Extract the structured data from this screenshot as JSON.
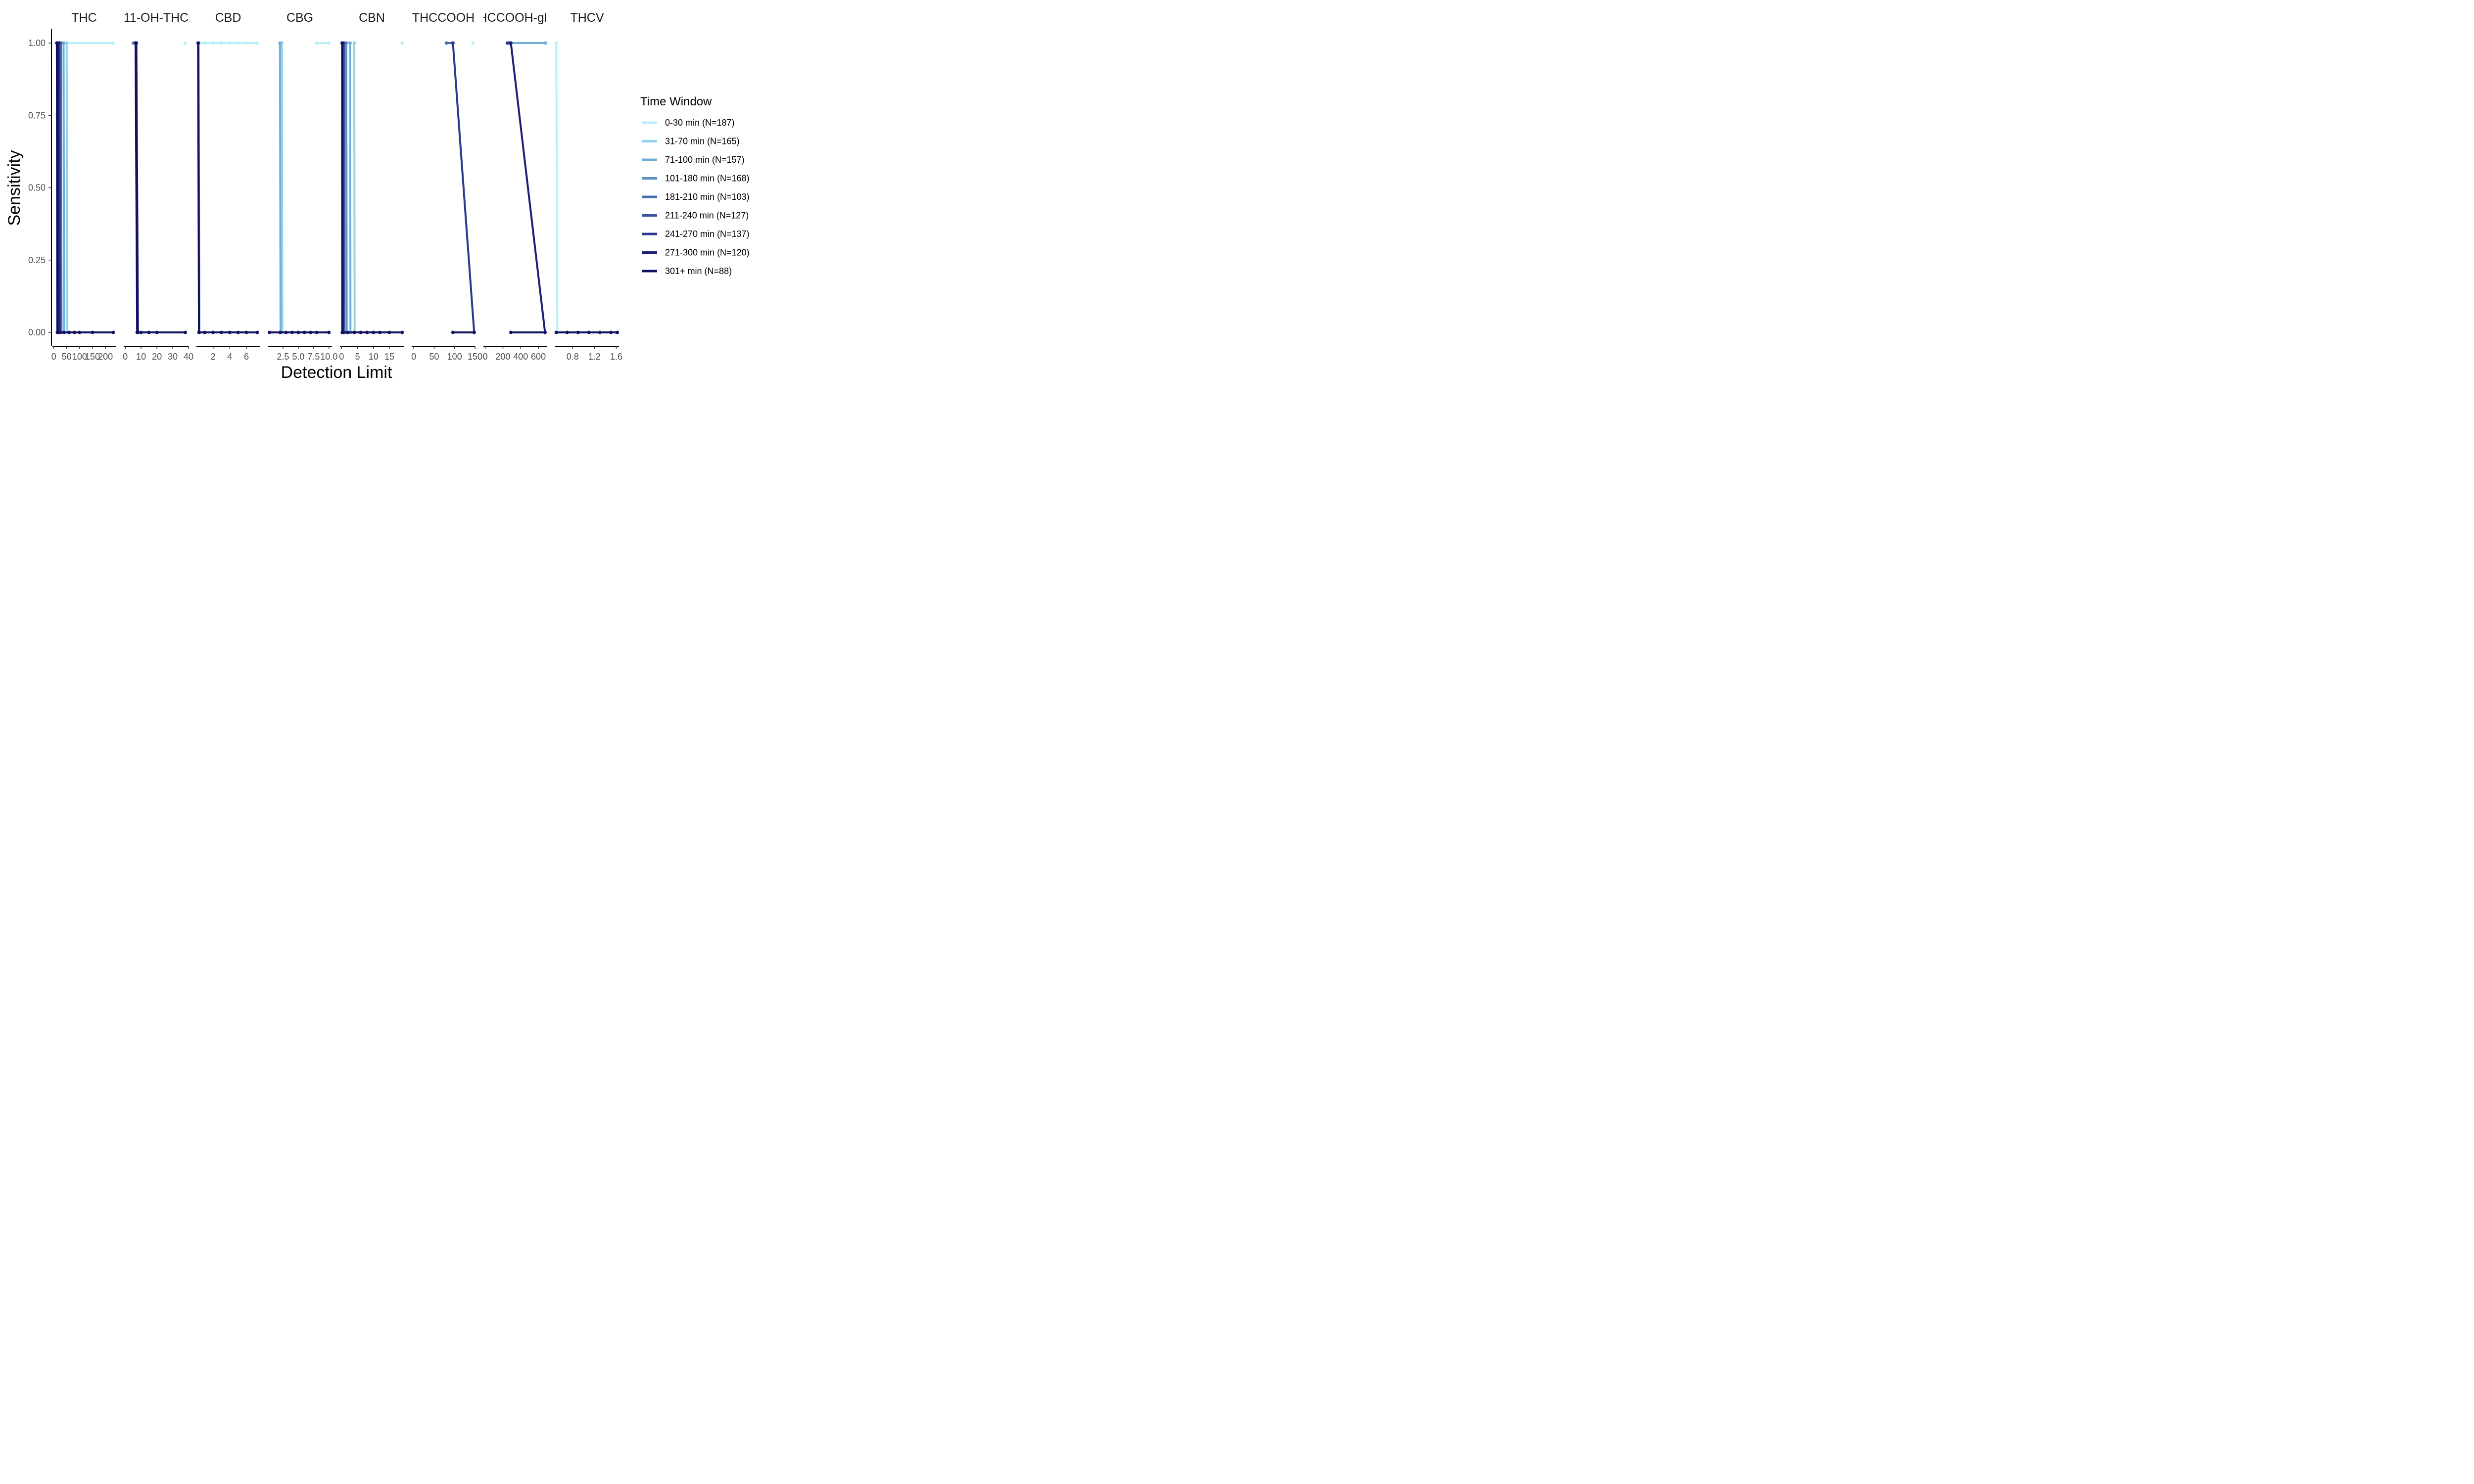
{
  "chart_data": {
    "type": "line",
    "xlabel": "Detection Limit",
    "ylabel": "Sensitivity",
    "ylim": [
      0,
      1
    ],
    "y_ticks": [
      "0.00",
      "0.25",
      "0.50",
      "0.75",
      "1.00"
    ],
    "y_values": [
      0,
      0.25,
      0.5,
      0.75,
      1
    ],
    "legend": {
      "title": "Time Window",
      "placement": "right",
      "entries": [
        {
          "label": "0-30 min (N=187)",
          "color": "#b8f0f8"
        },
        {
          "label": "31-70 min (N=165)",
          "color": "#8fd4ea"
        },
        {
          "label": "71-100 min (N=157)",
          "color": "#6fb0d6"
        },
        {
          "label": "101-180 min (N=168)",
          "color": "#5b8cc4"
        },
        {
          "label": "181-210 min (N=103)",
          "color": "#4a6fb0"
        },
        {
          "label": "211-240 min (N=127)",
          "color": "#3a549e"
        },
        {
          "label": "241-270 min (N=137)",
          "color": "#2b3990"
        },
        {
          "label": "271-300 min (N=120)",
          "color": "#1c1f78"
        },
        {
          "label": "301+ min (N=88)",
          "color": "#10105e"
        }
      ]
    },
    "panels": [
      {
        "title": "THC",
        "xlim": [
          -5,
          240
        ],
        "ticks": [
          {
            "v": 0,
            "l": "0"
          },
          {
            "v": 50,
            "l": "50"
          },
          {
            "v": 100,
            "l": "100"
          },
          {
            "v": 150,
            "l": "150"
          },
          {
            "v": 200,
            "l": "200"
          }
        ],
        "series": [
          {
            "ci": 0,
            "points": [
              [
                10,
                1
              ],
              [
                230,
                1
              ]
            ]
          },
          {
            "ci": 1,
            "points": [
              [
                50,
                1
              ],
              [
                52,
                0
              ]
            ]
          },
          {
            "ci": 2,
            "points": [
              [
                38,
                1
              ],
              [
                40,
                0
              ]
            ]
          },
          {
            "ci": 4,
            "points": [
              [
                28,
                1
              ],
              [
                30,
                0
              ]
            ]
          },
          {
            "ci": 6,
            "points": [
              [
                22,
                1
              ],
              [
                24,
                0
              ]
            ]
          },
          {
            "ci": 7,
            "points": [
              [
                17,
                1
              ],
              [
                19,
                0
              ]
            ]
          },
          {
            "ci": 8,
            "points": [
              [
                12,
                1
              ],
              [
                14,
                0
              ],
              [
                40,
                0
              ],
              [
                60,
                0
              ],
              [
                80,
                0
              ],
              [
                100,
                0
              ],
              [
                150,
                0
              ],
              [
                230,
                0
              ]
            ]
          }
        ]
      },
      {
        "title": "11-OH-THC",
        "xlim": [
          -1,
          40
        ],
        "ticks": [
          {
            "v": 0,
            "l": "0"
          },
          {
            "v": 10,
            "l": "10"
          },
          {
            "v": 20,
            "l": "20"
          },
          {
            "v": 30,
            "l": "30"
          },
          {
            "v": 40,
            "l": "40"
          }
        ],
        "series": [
          {
            "ci": 0,
            "points": [
              [
                38,
                1
              ]
            ]
          },
          {
            "ci": 3,
            "points": [
              [
                5,
                1
              ],
              [
                6,
                1
              ]
            ]
          },
          {
            "ci": 7,
            "points": [
              [
                7,
                1
              ],
              [
                8,
                0
              ]
            ]
          },
          {
            "ci": 8,
            "points": [
              [
                6.5,
                1
              ],
              [
                7.5,
                0
              ],
              [
                10,
                0
              ],
              [
                15,
                0
              ],
              [
                20,
                0
              ],
              [
                38,
                0
              ]
            ]
          }
        ]
      },
      {
        "title": "CBD",
        "xlim": [
          0,
          7.6
        ],
        "ticks": [
          {
            "v": 2,
            "l": "2"
          },
          {
            "v": 4,
            "l": "4"
          },
          {
            "v": 6,
            "l": "6"
          }
        ],
        "series": [
          {
            "ci": 0,
            "points": [
              [
                0.3,
                1
              ],
              [
                1,
                1
              ],
              [
                2,
                1
              ],
              [
                3,
                1
              ],
              [
                4,
                1
              ],
              [
                5,
                1
              ],
              [
                6,
                1
              ],
              [
                7.3,
                1
              ]
            ]
          },
          {
            "ci": 4,
            "points": [
              [
                0.25,
                1
              ],
              [
                0.35,
                0
              ]
            ]
          },
          {
            "ci": 8,
            "points": [
              [
                0.2,
                1
              ],
              [
                0.3,
                0
              ],
              [
                1,
                0
              ],
              [
                2,
                0
              ],
              [
                3,
                0
              ],
              [
                4,
                0
              ],
              [
                5,
                0
              ],
              [
                6,
                0
              ],
              [
                7.3,
                0
              ]
            ]
          }
        ]
      },
      {
        "title": "CBG",
        "xlim": [
          0,
          10.5
        ],
        "ticks": [
          {
            "v": 2.5,
            "l": "2.5"
          },
          {
            "v": 5.0,
            "l": "5.0"
          },
          {
            "v": 7.5,
            "l": "7.5"
          },
          {
            "v": 10.0,
            "l": "10.0"
          }
        ],
        "series": [
          {
            "ci": 0,
            "points": [
              [
                8,
                1
              ],
              [
                10,
                1
              ]
            ]
          },
          {
            "ci": 1,
            "points": [
              [
                2.3,
                1
              ],
              [
                2.4,
                0
              ]
            ]
          },
          {
            "ci": 2,
            "points": [
              [
                2.0,
                1
              ],
              [
                2.1,
                0
              ]
            ]
          },
          {
            "ci": 8,
            "points": [
              [
                0.3,
                0
              ],
              [
                2,
                0
              ],
              [
                3,
                0
              ],
              [
                4,
                0
              ],
              [
                5,
                0
              ],
              [
                6,
                0
              ],
              [
                7,
                0
              ],
              [
                8,
                0
              ],
              [
                10,
                0
              ]
            ]
          }
        ]
      },
      {
        "title": "CBN",
        "xlim": [
          -0.5,
          19.5
        ],
        "ticks": [
          {
            "v": 0,
            "l": "0"
          },
          {
            "v": 5,
            "l": "5"
          },
          {
            "v": 10,
            "l": "10"
          },
          {
            "v": 15,
            "l": "15"
          }
        ],
        "series": [
          {
            "ci": 0,
            "points": [
              [
                19,
                1
              ]
            ]
          },
          {
            "ci": 1,
            "points": [
              [
                4,
                1
              ],
              [
                4.1,
                0
              ]
            ]
          },
          {
            "ci": 2,
            "points": [
              [
                2.7,
                1
              ],
              [
                2.8,
                0
              ]
            ]
          },
          {
            "ci": 3,
            "points": [
              [
                1.5,
                1
              ],
              [
                1.6,
                0
              ]
            ]
          },
          {
            "ci": 5,
            "points": [
              [
                0.8,
                1
              ],
              [
                0.9,
                0
              ]
            ]
          },
          {
            "ci": 7,
            "points": [
              [
                0.3,
                1
              ],
              [
                0.4,
                0
              ]
            ]
          },
          {
            "ci": 8,
            "points": [
              [
                0.2,
                1
              ],
              [
                0.25,
                0
              ],
              [
                2,
                0
              ],
              [
                4,
                0
              ],
              [
                6,
                0
              ],
              [
                8,
                0
              ],
              [
                10,
                0
              ],
              [
                12,
                0
              ],
              [
                15,
                0
              ],
              [
                19,
                0
              ]
            ]
          }
        ]
      },
      {
        "title": "THCCOOH",
        "xlim": [
          -5,
          150
        ],
        "ticks": [
          {
            "v": 0,
            "l": "0"
          },
          {
            "v": 50,
            "l": "50"
          },
          {
            "v": 100,
            "l": "100"
          },
          {
            "v": 150,
            "l": "150"
          }
        ],
        "series": [
          {
            "ci": 0,
            "points": [
              [
                145,
                1
              ]
            ]
          },
          {
            "ci": 4,
            "points": [
              [
                80,
                1
              ],
              [
                95,
                1
              ]
            ]
          },
          {
            "ci": 6,
            "points": [
              [
                96,
                1
              ],
              [
                148,
                0
              ]
            ]
          },
          {
            "ci": 8,
            "points": [
              [
                96,
                0
              ],
              [
                148,
                0
              ]
            ]
          }
        ]
      },
      {
        "title": "THCCOOH-gluc",
        "xlim": [
          -20,
          700
        ],
        "ticks": [
          {
            "v": 0,
            "l": "0"
          },
          {
            "v": 200,
            "l": "200"
          },
          {
            "v": 400,
            "l": "400"
          },
          {
            "v": 600,
            "l": "600"
          }
        ],
        "series": [
          {
            "ci": 2,
            "points": [
              [
                280,
                1
              ],
              [
                680,
                1
              ]
            ]
          },
          {
            "ci": 6,
            "points": [
              [
                250,
                1
              ],
              [
                270,
                1
              ]
            ]
          },
          {
            "ci": 7,
            "points": [
              [
                290,
                1
              ],
              [
                675,
                0
              ]
            ]
          },
          {
            "ci": 8,
            "points": [
              [
                290,
                0
              ],
              [
                675,
                0
              ]
            ]
          }
        ]
      },
      {
        "title": "THCV",
        "xlim": [
          0.48,
          1.65
        ],
        "ticks": [
          {
            "v": 0.8,
            "l": "0.8"
          },
          {
            "v": 1.2,
            "l": "1.2"
          },
          {
            "v": 1.6,
            "l": "1.6"
          }
        ],
        "series": [
          {
            "ci": 0,
            "points": [
              [
                0.5,
                1
              ],
              [
                0.52,
                0
              ]
            ]
          },
          {
            "ci": 8,
            "points": [
              [
                0.5,
                0
              ],
              [
                0.7,
                0
              ],
              [
                0.9,
                0
              ],
              [
                1.1,
                0
              ],
              [
                1.3,
                0
              ],
              [
                1.5,
                0
              ],
              [
                1.62,
                0
              ]
            ]
          }
        ]
      }
    ]
  }
}
